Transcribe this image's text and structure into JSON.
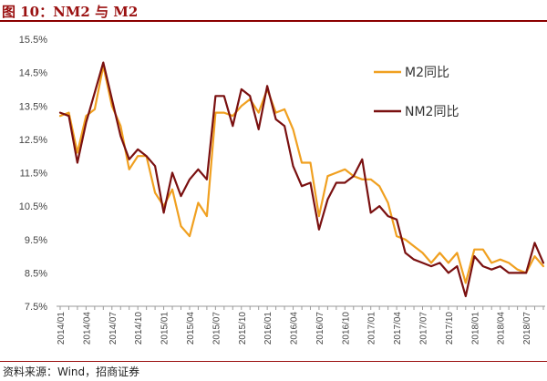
{
  "header": {
    "title": "图 10：NM2 与 M2"
  },
  "footer": {
    "source": "资料来源：Wind，招商证券"
  },
  "chart_data": {
    "type": "line",
    "title": "图 10：NM2 与 M2",
    "xlabel": "",
    "ylabel": "",
    "ylim": [
      7.5,
      15.5
    ],
    "y_ticks": [
      "15.5%",
      "14.5%",
      "13.5%",
      "12.5%",
      "11.5%",
      "10.5%",
      "9.5%",
      "8.5%",
      "7.5%"
    ],
    "y_tick_values": [
      15.5,
      14.5,
      13.5,
      12.5,
      11.5,
      10.5,
      9.5,
      8.5,
      7.5
    ],
    "x_ticks": [
      "2014/01",
      "2014/04",
      "2014/07",
      "2014/10",
      "2015/01",
      "2015/04",
      "2015/07",
      "2015/10",
      "2016/01",
      "2016/04",
      "2016/07",
      "2016/10",
      "2017/01",
      "2017/04",
      "2017/07",
      "2017/10",
      "2018/01",
      "2018/04",
      "2018/07"
    ],
    "x_tick_index": [
      0,
      3,
      6,
      9,
      12,
      15,
      18,
      21,
      24,
      27,
      30,
      33,
      36,
      39,
      42,
      45,
      48,
      51,
      54
    ],
    "x_count": 57,
    "grid": false,
    "legend_position": "right",
    "series": [
      {
        "name": "M2同比",
        "color": "#f0a020",
        "values": [
          13.2,
          13.3,
          12.1,
          13.2,
          13.4,
          14.7,
          13.5,
          12.9,
          11.6,
          12.0,
          12.0,
          10.9,
          10.5,
          11.0,
          9.9,
          9.6,
          10.6,
          10.2,
          13.3,
          13.3,
          13.2,
          13.5,
          13.7,
          13.3,
          14.0,
          13.3,
          13.4,
          12.8,
          11.8,
          11.8,
          10.2,
          11.4,
          11.5,
          11.6,
          11.4,
          11.3,
          11.3,
          11.1,
          10.6,
          9.6,
          9.5,
          9.3,
          9.1,
          8.8,
          9.1,
          8.8,
          9.1,
          8.2,
          9.2,
          9.2,
          8.8,
          8.9,
          8.8,
          8.6,
          8.5,
          9.0,
          8.7
        ]
      },
      {
        "name": "NM2同比",
        "color": "#7a1010",
        "values": [
          13.3,
          13.2,
          11.8,
          13.0,
          13.9,
          14.8,
          13.7,
          12.6,
          11.9,
          12.2,
          12.0,
          11.7,
          10.3,
          11.5,
          10.8,
          11.3,
          11.6,
          11.3,
          13.8,
          13.8,
          12.9,
          14.0,
          13.8,
          12.8,
          14.1,
          13.1,
          12.9,
          11.7,
          11.1,
          11.2,
          9.8,
          10.7,
          11.2,
          11.2,
          11.4,
          11.9,
          10.3,
          10.5,
          10.2,
          10.1,
          9.1,
          8.9,
          8.8,
          8.7,
          8.8,
          8.5,
          8.7,
          7.8,
          9.0,
          8.7,
          8.6,
          8.7,
          8.5,
          8.5,
          8.5,
          9.4,
          8.8
        ]
      }
    ]
  }
}
